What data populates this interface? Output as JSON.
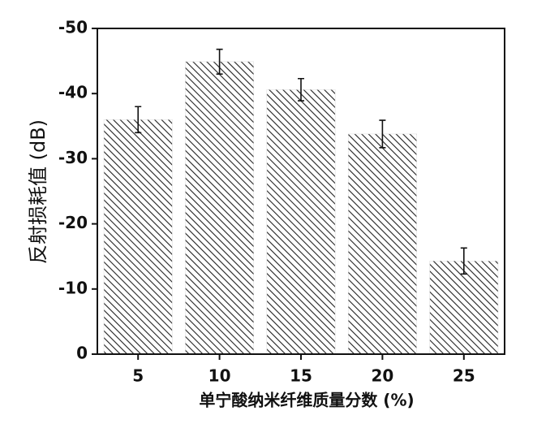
{
  "chart_data": {
    "type": "bar",
    "x_label": "单宁酸纳米纤维质量分数 (%)",
    "y_label": "反射损耗值 (dB)",
    "categories": [
      "5",
      "10",
      "15",
      "20",
      "25"
    ],
    "values": [
      -36.0,
      -44.9,
      -40.6,
      -33.8,
      -14.3
    ],
    "errors": [
      2.0,
      1.9,
      1.7,
      2.1,
      2.0
    ],
    "color": "#222222",
    "ylim": [
      0,
      -50
    ],
    "yticks": [
      0,
      -10,
      -20,
      -30,
      -40,
      -50
    ]
  }
}
